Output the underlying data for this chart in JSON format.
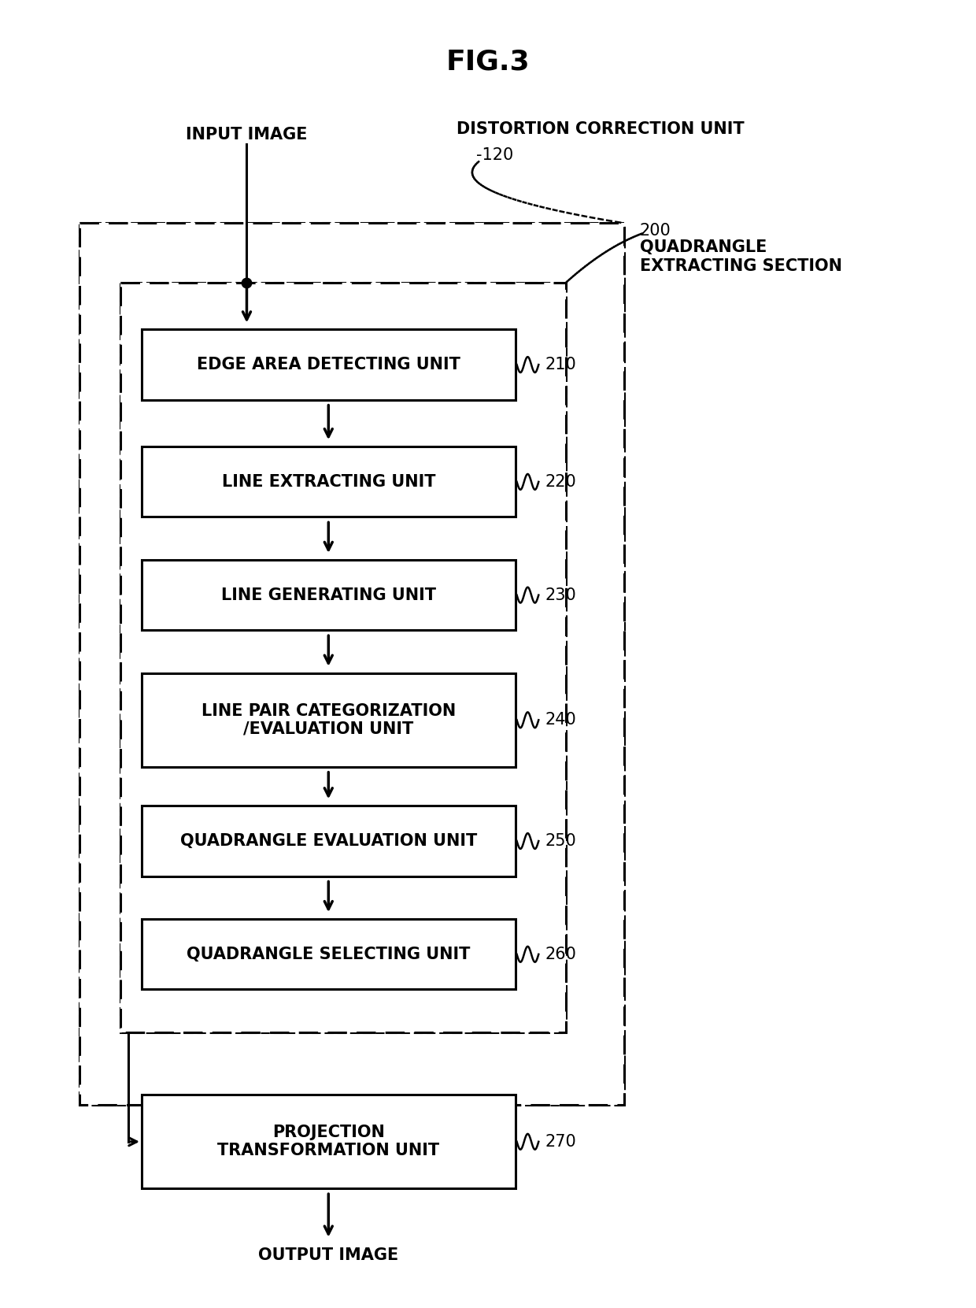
{
  "title": "FIG.3",
  "bg_color": "#ffffff",
  "fig_width": 12.4,
  "fig_height": 16.61,
  "labels": [
    "EDGE AREA DETECTING UNIT",
    "LINE EXTRACTING UNIT",
    "LINE GENERATING UNIT",
    "LINE PAIR CATEGORIZATION\n/EVALUATION UNIT",
    "QUADRANGLE EVALUATION UNIT",
    "QUADRANGLE SELECTING UNIT",
    "PROJECTION\nTRANSFORMATION UNIT"
  ],
  "refs": [
    "210",
    "220",
    "230",
    "240",
    "250",
    "260",
    "270"
  ],
  "input_label": "INPUT IMAGE",
  "output_label": "OUTPUT IMAGE",
  "distortion_label1": "DISTORTION CORRECTION UNIT",
  "distortion_label2": "-120",
  "quad_ref": "200",
  "quad_label": "QUADRANGLE\nEXTRACTING SECTION"
}
